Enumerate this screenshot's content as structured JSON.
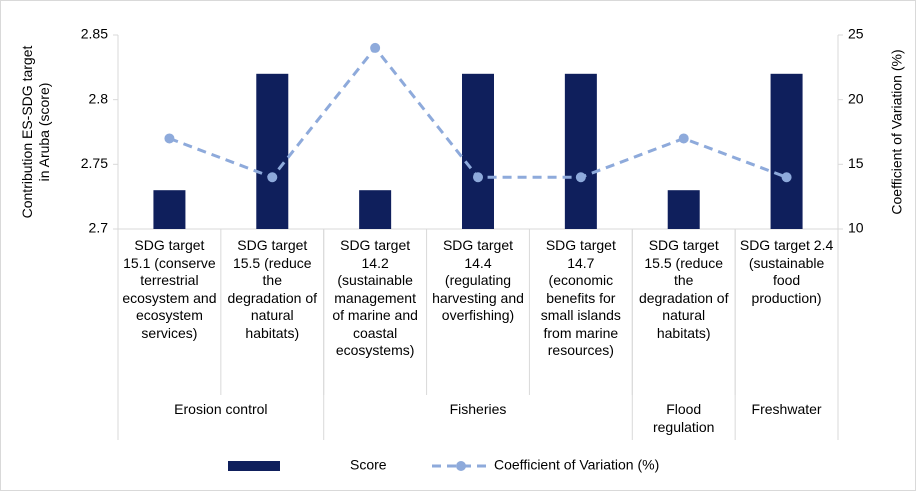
{
  "chart_data": {
    "type": "bar_line",
    "y_label": "Contribution ES-SDG target in Aruba (score)",
    "y2_label": "Coefficient of Variation (%)",
    "categories": [
      "SDG target 15.1 (conserve terrestrial ecosystem and ecosystem services)",
      "SDG target 15.5 (reduce the degradation of natural habitats)",
      "SDG target 14.2 (sustainable management of marine and coastal ecosystems)",
      "SDG target 14.4 (regulating harvesting and overfishing)",
      "SDG target 14.7 (economic benefits for small islands from marine resources)",
      "SDG target 15.5 (reduce the degradation of natural habitats)",
      "SDG target 2.4 (sustainable food production)"
    ],
    "groups": [
      {
        "label": "Erosion control",
        "span": 2
      },
      {
        "label": "Fisheries",
        "span": 3
      },
      {
        "label": "Flood regulation",
        "span": 1
      },
      {
        "label": "Freshwater",
        "span": 1
      }
    ],
    "series": [
      {
        "name": "Score",
        "type": "bar",
        "color": "#0f1f5c",
        "values": [
          2.73,
          2.82,
          2.73,
          2.82,
          2.82,
          2.73,
          2.82
        ]
      },
      {
        "name": "Coefficient of Variation (%)",
        "type": "line",
        "axis": "y2",
        "color": "#8eaadb",
        "values": [
          17,
          14,
          24,
          14,
          14,
          17,
          14
        ]
      }
    ],
    "ylim": [
      2.7,
      2.85
    ],
    "yticks": [
      2.7,
      2.75,
      2.8,
      2.85
    ],
    "y2lim": [
      10,
      25
    ],
    "y2ticks": [
      10,
      15,
      20,
      25
    ],
    "legend": "bottom"
  }
}
